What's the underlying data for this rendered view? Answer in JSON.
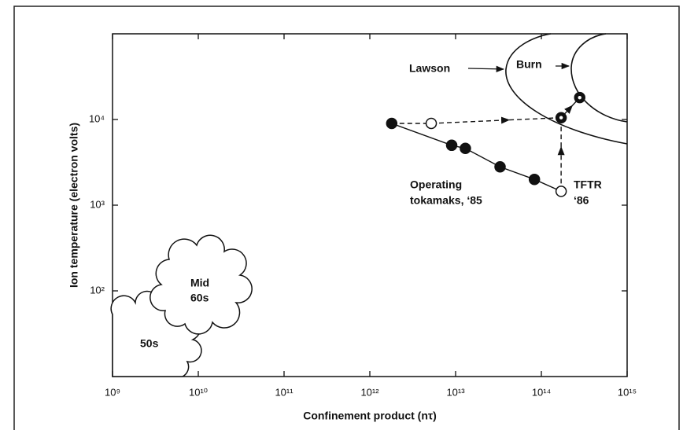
{
  "chart_data": {
    "type": "scatter",
    "xlabel": "Confinement product (nτ)",
    "ylabel": "Ion temperature (electron volts)",
    "log_x": true,
    "log_y": true,
    "xlim": [
      1000000000.0,
      1000000000000000.0
    ],
    "xticks": [
      {
        "value": 1000000000.0,
        "label": "10⁹"
      },
      {
        "value": 10000000000.0,
        "label": "10¹⁰"
      },
      {
        "value": 100000000000.0,
        "label": "10¹¹"
      },
      {
        "value": 1000000000000.0,
        "label": "10¹²"
      },
      {
        "value": 10000000000000.0,
        "label": "10¹³"
      },
      {
        "value": 100000000000000.0,
        "label": "10¹⁴"
      },
      {
        "value": 1000000000000000.0,
        "label": "10¹⁵"
      }
    ],
    "ylim": [
      10,
      100000
    ],
    "yticks": [
      {
        "value": 100,
        "label": "10²"
      },
      {
        "value": 1000,
        "label": "10³"
      },
      {
        "value": 10000,
        "label": "10⁴"
      }
    ],
    "series": [
      {
        "color": "#111111",
        "marker": "filled",
        "x": [
          1800000000000.0,
          9000000000000.0,
          13000000000000.0,
          33000000000000.0,
          83000000000000.0
        ],
        "values": [
          9000,
          5000,
          4600,
          2800,
          2000
        ]
      },
      {
        "color": "#111111",
        "marker": "open",
        "x": [
          5200000000000.0,
          170000000000000.0
        ],
        "values": [
          9000,
          1450
        ]
      },
      {
        "color": "#111111",
        "marker": "dotted",
        "x": [
          170000000000000.0,
          280000000000000.0
        ],
        "values": [
          10500,
          18000
        ]
      }
    ],
    "annotations": [
      "Lawson",
      "Burn",
      "Operating",
      "tokamaks, ‘85",
      "TFTR",
      "‘86",
      "Mid",
      "60s",
      "50s"
    ]
  }
}
